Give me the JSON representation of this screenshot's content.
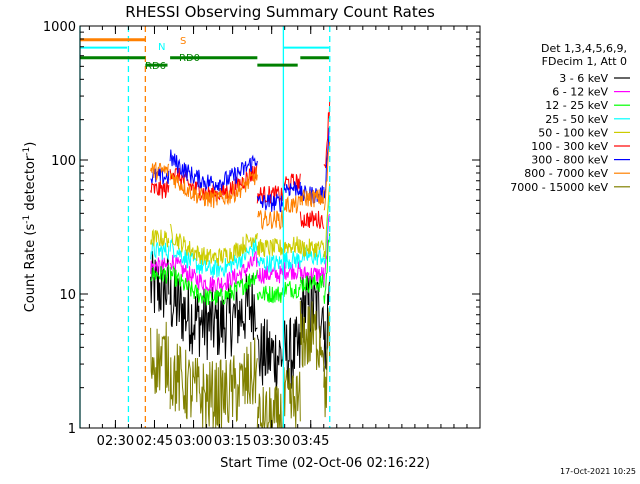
{
  "chart_data": {
    "type": "line",
    "title": "RHESSI Observing Summary Count Rates",
    "xlabel": "Start Time (02-Oct-06 02:16:22)",
    "ylabel_main": "Count Rate (s",
    "ylabel_sup1": "-1",
    "ylabel_mid": " detector",
    "ylabel_sup2": "-1",
    "ylabel_end": ")",
    "y_scale": "log",
    "ylim": [
      1,
      1000
    ],
    "xlim_minutes": [
      16.4,
      170
    ],
    "x_ticks": [
      {
        "min": 30,
        "label": "02:30"
      },
      {
        "min": 45,
        "label": "02:45"
      },
      {
        "min": 60,
        "label": "03:00"
      },
      {
        "min": 75,
        "label": "03:15"
      },
      {
        "min": 90,
        "label": "03:30"
      },
      {
        "min": 105,
        "label": "03:45"
      }
    ],
    "y_ticks": [
      {
        "v": 1,
        "label": "1"
      },
      {
        "v": 10,
        "label": "10"
      },
      {
        "v": 100,
        "label": "100"
      },
      {
        "v": 1000,
        "label": "1000"
      }
    ],
    "legend_header": [
      "Det 1,3,4,5,6,9,",
      "FDecim 1, Att 0"
    ],
    "legend_position": "right",
    "series": [
      {
        "name": "3 - 6 keV",
        "color": "#000000",
        "levels": [
          11,
          7,
          3.5,
          3.6,
          8,
          3.3
        ]
      },
      {
        "name": "6 - 12 keV",
        "color": "#ff00ff",
        "levels": [
          16,
          14,
          14,
          15,
          14,
          12
        ]
      },
      {
        "name": "12 - 25 keV",
        "color": "#00ff00",
        "levels": [
          14,
          11,
          10,
          11,
          12,
          9
        ]
      },
      {
        "name": "25 - 50 keV",
        "color": "#00ffff",
        "levels": [
          21,
          18,
          17,
          18,
          19,
          16
        ]
      },
      {
        "name": "50 - 100 keV",
        "color": "#cccc00",
        "levels": [
          26,
          22,
          22,
          23,
          22,
          19
        ]
      },
      {
        "name": "100 - 300 keV",
        "color": "#ff0000",
        "levels": [
          60,
          66,
          55,
          68,
          36,
          80
        ]
      },
      {
        "name": "300 - 800 keV",
        "color": "#0000ff",
        "levels": [
          75,
          80,
          48,
          62,
          55,
          56
        ]
      },
      {
        "name": "800 - 7000 keV",
        "color": "#ff8000",
        "levels": [
          83,
          60,
          36,
          46,
          52,
          42
        ]
      },
      {
        "name": "7000 - 15000 keV",
        "color": "#808000",
        "levels": [
          3.3,
          2.0,
          1.1,
          1.5,
          4.8,
          1.6
        ]
      }
    ],
    "flag_bars": [
      {
        "label": "S",
        "color": "#ff8000",
        "start": 16.4,
        "end": 41.5,
        "value": 790,
        "width": 3
      },
      {
        "label": "N",
        "color": "#00ffff",
        "start": 16.4,
        "end": 34.5,
        "value": 690,
        "width": 2
      },
      {
        "label": "N",
        "color": "#00ffff",
        "start": 94.5,
        "end": 112,
        "value": 690,
        "width": 2
      },
      {
        "label": "RD0",
        "color": "#008000",
        "start": 16.4,
        "end": 41.5,
        "value": 580,
        "width": 3
      },
      {
        "label": "RD6",
        "color": "#008000",
        "start": 41.5,
        "end": 50,
        "value": 510,
        "width": 3
      },
      {
        "label": "RD0",
        "color": "#008000",
        "start": 51,
        "end": 84.5,
        "value": 580,
        "width": 3
      },
      {
        "label": "RD6",
        "color": "#008000",
        "start": 84.5,
        "end": 100,
        "value": 510,
        "width": 3
      },
      {
        "label": "RD0",
        "color": "#008000",
        "start": 101,
        "end": 112,
        "value": 580,
        "width": 3
      }
    ],
    "vertical_markers": [
      {
        "x": 16.4,
        "color": "#00ffff",
        "style": "solid"
      },
      {
        "x": 35.0,
        "color": "#00ffff",
        "style": "dashed"
      },
      {
        "x": 41.5,
        "color": "#ff8000",
        "style": "dashed"
      },
      {
        "x": 94.5,
        "color": "#00ffff",
        "style": "solid"
      },
      {
        "x": 112.3,
        "color": "#00ffff",
        "style": "dashed"
      }
    ],
    "flag_labels": [
      "S",
      "N",
      "RD0",
      "RD6"
    ],
    "timestamp": "17-Oct-2021 10:25"
  }
}
